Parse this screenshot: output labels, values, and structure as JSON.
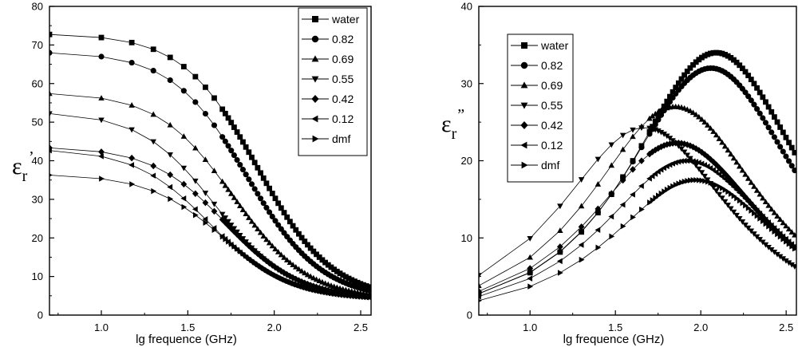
{
  "chart_data": [
    {
      "type": "line",
      "panel": "left",
      "ylabel_main": "ε",
      "ylabel_sub": "r",
      "ylabel_mark": "’",
      "xlabel": "lg  frequence (GHz)",
      "xlim": [
        0.7,
        2.56
      ],
      "ylim": [
        0,
        80
      ],
      "xticks": [
        1.0,
        1.5,
        2.0,
        2.5
      ],
      "xtick_labels": [
        "1.0",
        "1.5",
        "2.0",
        "2.5"
      ],
      "yticks": [
        0,
        10,
        20,
        30,
        40,
        50,
        60,
        70,
        80
      ],
      "ytick_labels": [
        "0",
        "10",
        "20",
        "30",
        "40",
        "50",
        "60",
        "70",
        "80"
      ],
      "legend_position": "top-right",
      "model": "debye_real",
      "series": [
        {
          "name": "water",
          "marker": "square",
          "es": 73.0,
          "einf": 4.0,
          "fc": 1.9
        },
        {
          "name": "0.82",
          "marker": "circle",
          "es": 68.3,
          "einf": 4.0,
          "fc": 1.84
        },
        {
          "name": "0.69",
          "marker": "triangle-up",
          "es": 57.8,
          "einf": 4.0,
          "fc": 1.76
        },
        {
          "name": "0.55",
          "marker": "triangle-down",
          "es": 52.8,
          "einf": 4.0,
          "fc": 1.66
        },
        {
          "name": "0.42",
          "marker": "diamond",
          "es": 43.7,
          "einf": 4.0,
          "fc": 1.72
        },
        {
          "name": "0.12",
          "marker": "triangle-left",
          "es": 43.2,
          "einf": 4.0,
          "fc": 1.63
        },
        {
          "name": "dmf",
          "marker": "triangle-right",
          "es": 36.6,
          "einf": 4.0,
          "fc": 1.7
        }
      ]
    },
    {
      "type": "line",
      "panel": "right",
      "ylabel_main": "ε",
      "ylabel_sub": "r",
      "ylabel_mark": "”",
      "xlabel": "lg  frequence (GHz)",
      "xlim": [
        0.7,
        2.56
      ],
      "ylim": [
        0,
        40
      ],
      "xticks": [
        1.0,
        1.5,
        2.0,
        2.5
      ],
      "xtick_labels": [
        "1.0",
        "1.5",
        "2.0",
        "2.5"
      ],
      "yticks": [
        0,
        10,
        20,
        30,
        40
      ],
      "ytick_labels": [
        "0",
        "10",
        "20",
        "30",
        "40"
      ],
      "legend_position": "top-left",
      "model": "debye_loss",
      "series": [
        {
          "name": "water",
          "marker": "square",
          "peak_x": 2.09,
          "peak_y": 34.0
        },
        {
          "name": "0.82",
          "marker": "circle",
          "peak_x": 2.06,
          "peak_y": 32.0
        },
        {
          "name": "0.69",
          "marker": "triangle-up",
          "peak_x": 1.85,
          "peak_y": 27.0
        },
        {
          "name": "0.55",
          "marker": "triangle-down",
          "peak_x": 1.67,
          "peak_y": 24.3
        },
        {
          "name": "0.42",
          "marker": "diamond",
          "peak_x": 1.86,
          "peak_y": 22.3
        },
        {
          "name": "0.12",
          "marker": "triangle-left",
          "peak_x": 1.92,
          "peak_y": 20.0
        },
        {
          "name": "dmf",
          "marker": "triangle-right",
          "peak_x": 1.97,
          "peak_y": 17.5
        }
      ]
    }
  ]
}
